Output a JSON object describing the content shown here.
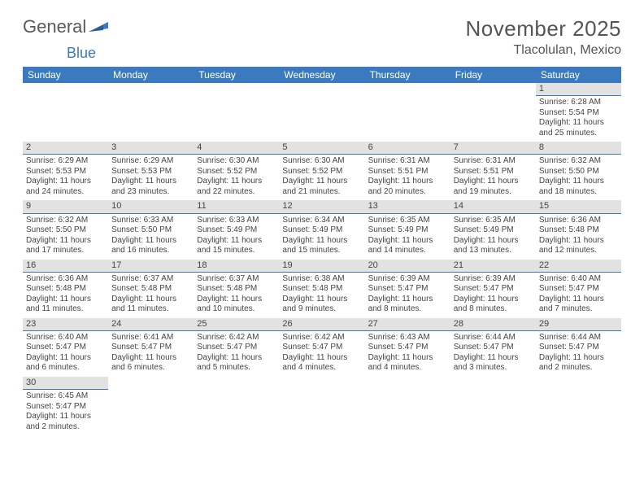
{
  "brand": {
    "general": "General",
    "blue": "Blue"
  },
  "title": "November 2025",
  "location": "Tlacolulan, Mexico",
  "colors": {
    "header_bg": "#3b7abf",
    "header_fg": "#ffffff",
    "daynum_bg": "#e2e2e2",
    "daynum_border": "#3b7abf",
    "text": "#444444",
    "page_bg": "#ffffff"
  },
  "dayNames": [
    "Sunday",
    "Monday",
    "Tuesday",
    "Wednesday",
    "Thursday",
    "Friday",
    "Saturday"
  ],
  "weeks": [
    [
      null,
      null,
      null,
      null,
      null,
      null,
      {
        "n": "1",
        "sr": "Sunrise: 6:28 AM",
        "ss": "Sunset: 5:54 PM",
        "dl1": "Daylight: 11 hours",
        "dl2": "and 25 minutes."
      }
    ],
    [
      {
        "n": "2",
        "sr": "Sunrise: 6:29 AM",
        "ss": "Sunset: 5:53 PM",
        "dl1": "Daylight: 11 hours",
        "dl2": "and 24 minutes."
      },
      {
        "n": "3",
        "sr": "Sunrise: 6:29 AM",
        "ss": "Sunset: 5:53 PM",
        "dl1": "Daylight: 11 hours",
        "dl2": "and 23 minutes."
      },
      {
        "n": "4",
        "sr": "Sunrise: 6:30 AM",
        "ss": "Sunset: 5:52 PM",
        "dl1": "Daylight: 11 hours",
        "dl2": "and 22 minutes."
      },
      {
        "n": "5",
        "sr": "Sunrise: 6:30 AM",
        "ss": "Sunset: 5:52 PM",
        "dl1": "Daylight: 11 hours",
        "dl2": "and 21 minutes."
      },
      {
        "n": "6",
        "sr": "Sunrise: 6:31 AM",
        "ss": "Sunset: 5:51 PM",
        "dl1": "Daylight: 11 hours",
        "dl2": "and 20 minutes."
      },
      {
        "n": "7",
        "sr": "Sunrise: 6:31 AM",
        "ss": "Sunset: 5:51 PM",
        "dl1": "Daylight: 11 hours",
        "dl2": "and 19 minutes."
      },
      {
        "n": "8",
        "sr": "Sunrise: 6:32 AM",
        "ss": "Sunset: 5:50 PM",
        "dl1": "Daylight: 11 hours",
        "dl2": "and 18 minutes."
      }
    ],
    [
      {
        "n": "9",
        "sr": "Sunrise: 6:32 AM",
        "ss": "Sunset: 5:50 PM",
        "dl1": "Daylight: 11 hours",
        "dl2": "and 17 minutes."
      },
      {
        "n": "10",
        "sr": "Sunrise: 6:33 AM",
        "ss": "Sunset: 5:50 PM",
        "dl1": "Daylight: 11 hours",
        "dl2": "and 16 minutes."
      },
      {
        "n": "11",
        "sr": "Sunrise: 6:33 AM",
        "ss": "Sunset: 5:49 PM",
        "dl1": "Daylight: 11 hours",
        "dl2": "and 15 minutes."
      },
      {
        "n": "12",
        "sr": "Sunrise: 6:34 AM",
        "ss": "Sunset: 5:49 PM",
        "dl1": "Daylight: 11 hours",
        "dl2": "and 15 minutes."
      },
      {
        "n": "13",
        "sr": "Sunrise: 6:35 AM",
        "ss": "Sunset: 5:49 PM",
        "dl1": "Daylight: 11 hours",
        "dl2": "and 14 minutes."
      },
      {
        "n": "14",
        "sr": "Sunrise: 6:35 AM",
        "ss": "Sunset: 5:49 PM",
        "dl1": "Daylight: 11 hours",
        "dl2": "and 13 minutes."
      },
      {
        "n": "15",
        "sr": "Sunrise: 6:36 AM",
        "ss": "Sunset: 5:48 PM",
        "dl1": "Daylight: 11 hours",
        "dl2": "and 12 minutes."
      }
    ],
    [
      {
        "n": "16",
        "sr": "Sunrise: 6:36 AM",
        "ss": "Sunset: 5:48 PM",
        "dl1": "Daylight: 11 hours",
        "dl2": "and 11 minutes."
      },
      {
        "n": "17",
        "sr": "Sunrise: 6:37 AM",
        "ss": "Sunset: 5:48 PM",
        "dl1": "Daylight: 11 hours",
        "dl2": "and 11 minutes."
      },
      {
        "n": "18",
        "sr": "Sunrise: 6:37 AM",
        "ss": "Sunset: 5:48 PM",
        "dl1": "Daylight: 11 hours",
        "dl2": "and 10 minutes."
      },
      {
        "n": "19",
        "sr": "Sunrise: 6:38 AM",
        "ss": "Sunset: 5:48 PM",
        "dl1": "Daylight: 11 hours",
        "dl2": "and 9 minutes."
      },
      {
        "n": "20",
        "sr": "Sunrise: 6:39 AM",
        "ss": "Sunset: 5:47 PM",
        "dl1": "Daylight: 11 hours",
        "dl2": "and 8 minutes."
      },
      {
        "n": "21",
        "sr": "Sunrise: 6:39 AM",
        "ss": "Sunset: 5:47 PM",
        "dl1": "Daylight: 11 hours",
        "dl2": "and 8 minutes."
      },
      {
        "n": "22",
        "sr": "Sunrise: 6:40 AM",
        "ss": "Sunset: 5:47 PM",
        "dl1": "Daylight: 11 hours",
        "dl2": "and 7 minutes."
      }
    ],
    [
      {
        "n": "23",
        "sr": "Sunrise: 6:40 AM",
        "ss": "Sunset: 5:47 PM",
        "dl1": "Daylight: 11 hours",
        "dl2": "and 6 minutes."
      },
      {
        "n": "24",
        "sr": "Sunrise: 6:41 AM",
        "ss": "Sunset: 5:47 PM",
        "dl1": "Daylight: 11 hours",
        "dl2": "and 6 minutes."
      },
      {
        "n": "25",
        "sr": "Sunrise: 6:42 AM",
        "ss": "Sunset: 5:47 PM",
        "dl1": "Daylight: 11 hours",
        "dl2": "and 5 minutes."
      },
      {
        "n": "26",
        "sr": "Sunrise: 6:42 AM",
        "ss": "Sunset: 5:47 PM",
        "dl1": "Daylight: 11 hours",
        "dl2": "and 4 minutes."
      },
      {
        "n": "27",
        "sr": "Sunrise: 6:43 AM",
        "ss": "Sunset: 5:47 PM",
        "dl1": "Daylight: 11 hours",
        "dl2": "and 4 minutes."
      },
      {
        "n": "28",
        "sr": "Sunrise: 6:44 AM",
        "ss": "Sunset: 5:47 PM",
        "dl1": "Daylight: 11 hours",
        "dl2": "and 3 minutes."
      },
      {
        "n": "29",
        "sr": "Sunrise: 6:44 AM",
        "ss": "Sunset: 5:47 PM",
        "dl1": "Daylight: 11 hours",
        "dl2": "and 2 minutes."
      }
    ],
    [
      {
        "n": "30",
        "sr": "Sunrise: 6:45 AM",
        "ss": "Sunset: 5:47 PM",
        "dl1": "Daylight: 11 hours",
        "dl2": "and 2 minutes."
      },
      null,
      null,
      null,
      null,
      null,
      null
    ]
  ]
}
